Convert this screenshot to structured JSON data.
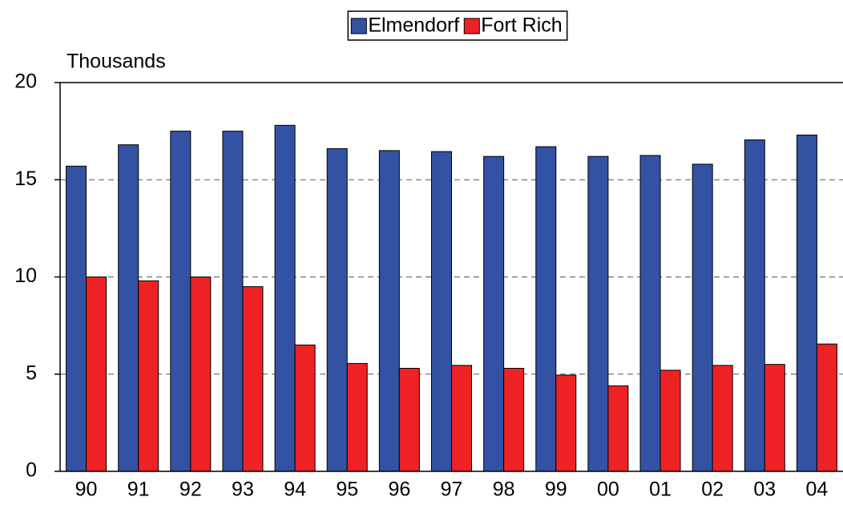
{
  "chart_data": {
    "type": "bar",
    "ylabel": "Thousands",
    "categories": [
      "90",
      "91",
      "92",
      "93",
      "94",
      "95",
      "96",
      "97",
      "98",
      "99",
      "00",
      "01",
      "02",
      "03",
      "04"
    ],
    "series": [
      {
        "name": "Elmendorf",
        "color": "#3352a3",
        "values": [
          15.7,
          16.8,
          17.5,
          17.5,
          17.8,
          16.6,
          16.5,
          16.45,
          16.2,
          16.7,
          16.2,
          16.25,
          15.8,
          17.05,
          17.3
        ]
      },
      {
        "name": "Fort Rich",
        "color": "#ee2224",
        "values": [
          10.0,
          9.8,
          10.0,
          9.5,
          6.5,
          5.55,
          5.3,
          5.45,
          5.3,
          4.95,
          4.4,
          5.2,
          5.45,
          5.5,
          6.55
        ]
      }
    ],
    "ylim": [
      0,
      20
    ],
    "yticks": [
      0,
      5,
      10,
      15,
      20
    ],
    "grid": true,
    "legend": "top"
  }
}
